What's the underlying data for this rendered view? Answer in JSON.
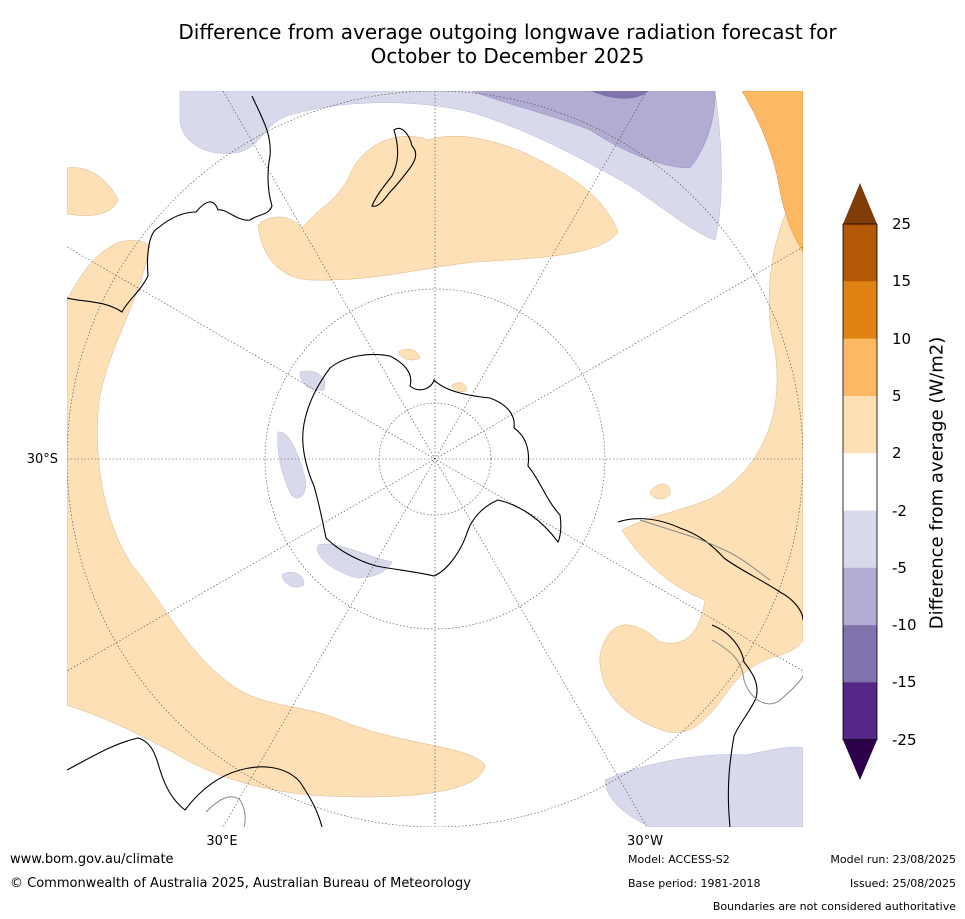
{
  "title": {
    "line1": "Difference from average outgoing longwave radiation forecast for",
    "line2": "October to December 2025"
  },
  "map": {
    "lat_label": "30°S",
    "lon_labels": {
      "east": "30°E",
      "west": "30°W"
    },
    "projection": "south-polar-stereographic"
  },
  "colorbar": {
    "label": "Difference from average (W/m2)",
    "ticks": [
      "25",
      "15",
      "10",
      "5",
      "2",
      "-2",
      "-5",
      "-10",
      "-15",
      "-25"
    ],
    "bands": [
      {
        "range": "15 to 25",
        "color": "#b35806"
      },
      {
        "range": "10 to 15",
        "color": "#e08214"
      },
      {
        "range": "5 to 10",
        "color": "#fdb863"
      },
      {
        "range": "2 to 5",
        "color": "#fee0b6"
      },
      {
        "range": "-2 to 2",
        "color": "#ffffff"
      },
      {
        "range": "-5 to -2",
        "color": "#d8daeb"
      },
      {
        "range": "-10 to -5",
        "color": "#b2abd2"
      },
      {
        "range": "-15 to -10",
        "color": "#8073ac"
      },
      {
        "range": "-25 to -15",
        "color": "#542788"
      }
    ],
    "over_color": "#7f3b08",
    "under_color": "#2d004b"
  },
  "footer": {
    "url": "www.bom.gov.au/climate",
    "copyright": "© Commonwealth of Australia 2025, Australian Bureau of Meteorology",
    "model": "Model: ACCESS-S2",
    "base_period": "Base period: 1981-2018",
    "model_run": "Model run: 23/08/2025",
    "issued": "Issued: 25/08/2025",
    "disclaimer": "Boundaries are not considered authoritative"
  }
}
